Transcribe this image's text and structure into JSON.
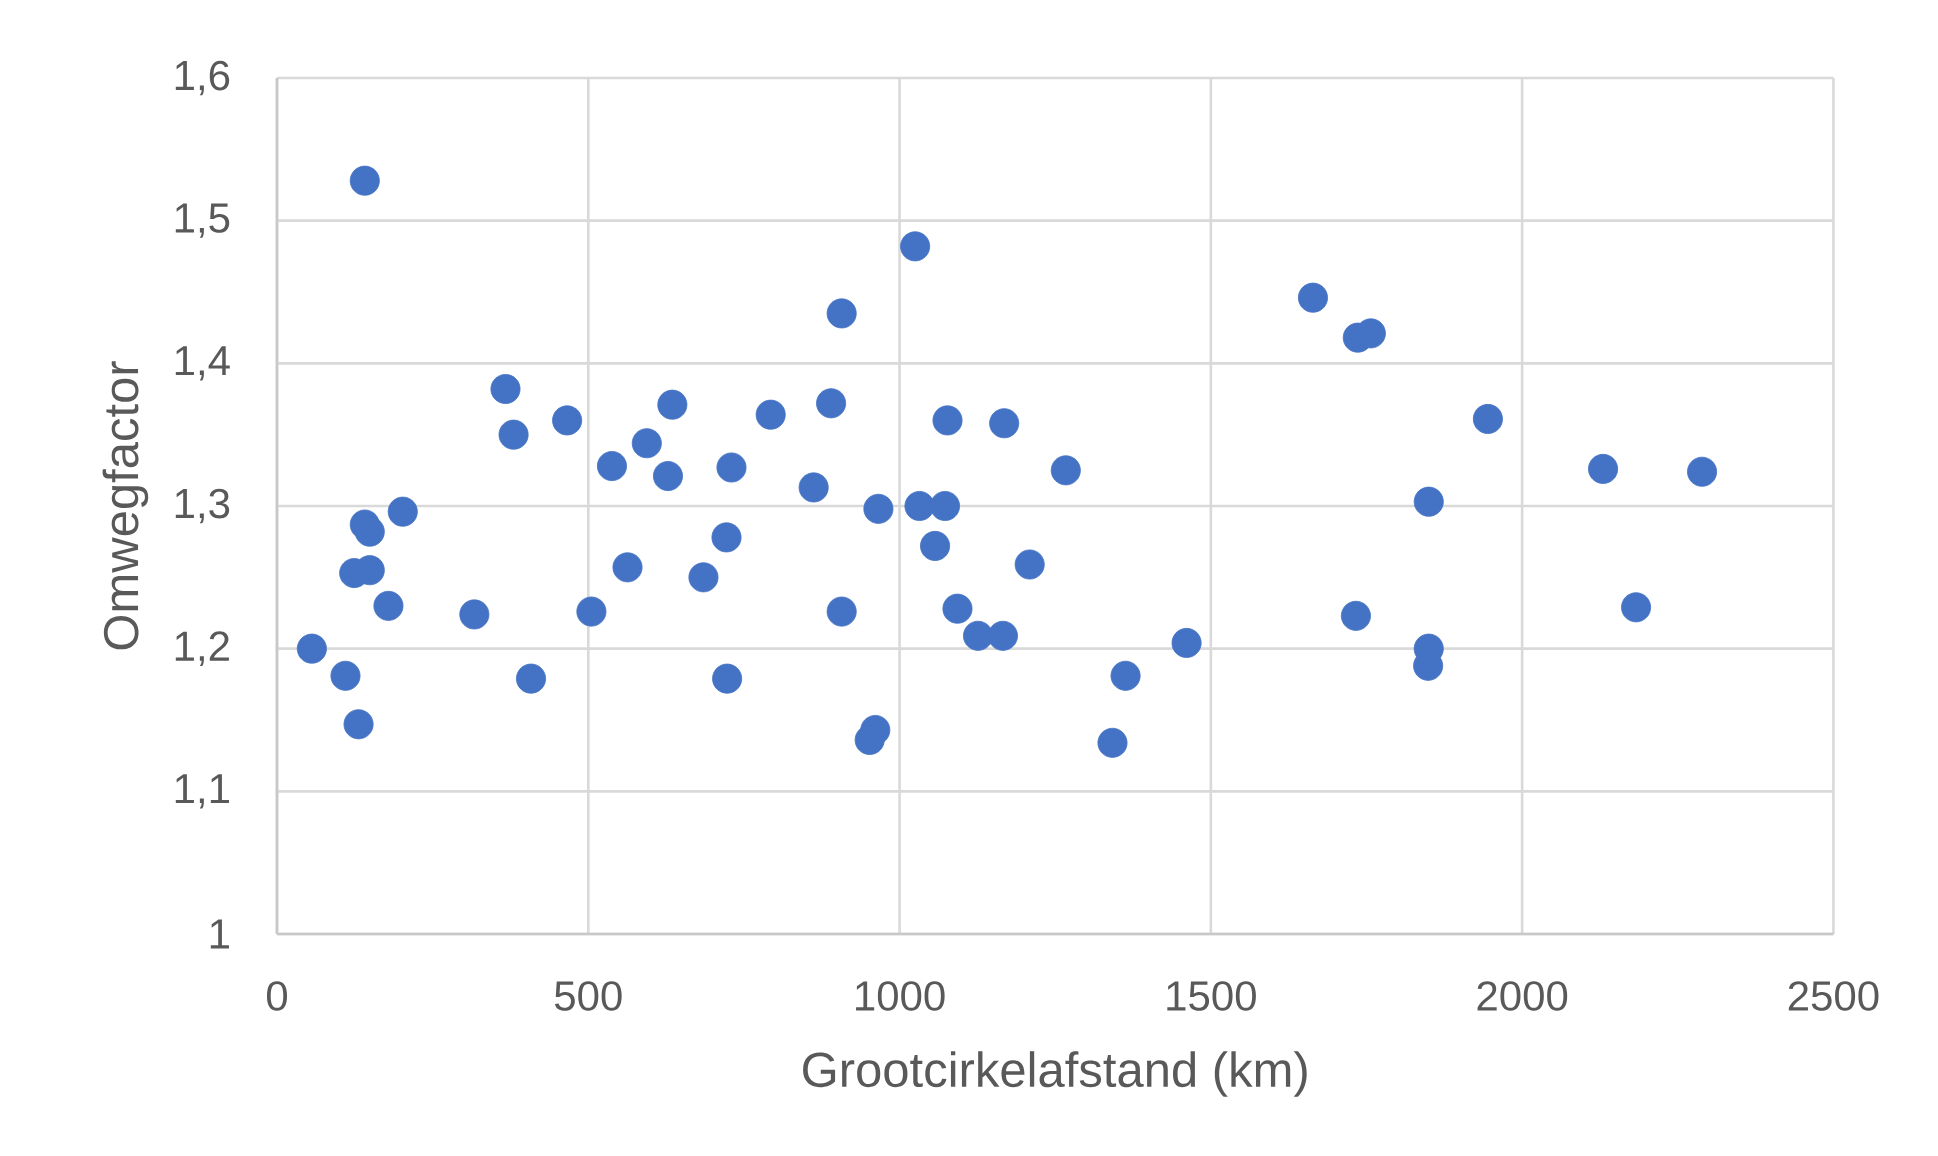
{
  "chart_data": {
    "type": "scatter",
    "xlabel": "Grootcirkelafstand (km)",
    "ylabel": "Omwegfactor",
    "x": [
      141,
      907,
      367,
      380,
      466,
      635,
      594,
      538,
      628,
      730,
      793,
      890,
      862,
      141,
      149,
      202,
      124,
      149,
      179,
      317,
      505,
      563,
      685,
      722,
      907,
      56,
      110,
      131,
      408,
      723,
      1025,
      1077,
      1168,
      1267,
      966,
      1032,
      1073,
      1057,
      1209,
      1093,
      1126,
      1166,
      1461,
      1363,
      1342,
      961,
      952,
      1664,
      1736,
      1757,
      1733,
      1945,
      1850,
      2130,
      2289,
      2183,
      1850,
      1849
    ],
    "values": [
      1.528,
      1.435,
      1.382,
      1.35,
      1.36,
      1.371,
      1.344,
      1.328,
      1.321,
      1.327,
      1.364,
      1.372,
      1.313,
      1.287,
      1.282,
      1.296,
      1.253,
      1.255,
      1.23,
      1.224,
      1.226,
      1.257,
      1.25,
      1.278,
      1.226,
      1.2,
      1.181,
      1.147,
      1.179,
      1.179,
      1.482,
      1.36,
      1.358,
      1.325,
      1.298,
      1.3,
      1.3,
      1.272,
      1.259,
      1.228,
      1.209,
      1.209,
      1.204,
      1.181,
      1.134,
      1.143,
      1.136,
      1.446,
      1.418,
      1.421,
      1.223,
      1.361,
      1.303,
      1.326,
      1.324,
      1.229,
      1.2,
      1.188
    ],
    "color": "#4472c4",
    "marker": "circle",
    "grid": true,
    "xlim": [
      0,
      2500
    ],
    "ylim": [
      1,
      1.6
    ],
    "xticks": [
      0,
      500,
      1000,
      1500,
      2000,
      2500
    ],
    "yticks": [
      1,
      {
        "value": 1.1,
        "label": "1,1"
      },
      {
        "value": 1.2,
        "label": "1,2"
      },
      {
        "value": 1.3,
        "label": "1,3"
      },
      {
        "value": 1.4,
        "label": "1,4"
      },
      {
        "value": 1.5,
        "label": "1,5"
      },
      {
        "value": 1.6,
        "label": "1,6"
      }
    ]
  }
}
